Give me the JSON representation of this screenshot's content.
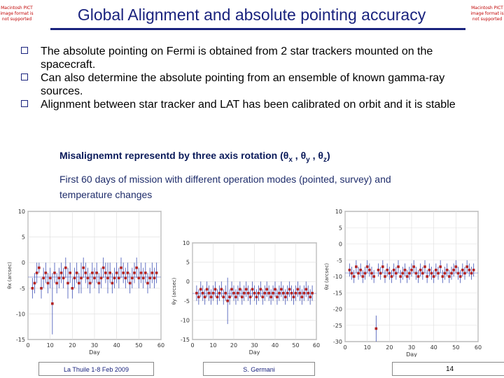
{
  "pict_placeholder": "Macintosh PICT image format is not supported",
  "title": "Global Alignment and absolute pointing accuracy",
  "bullets": [
    "The absolute pointing on Fermi is obtained from 2 star trackers mounted on the spacecraft.",
    "Can also determine the absolute pointing from an ensemble of known gamma-ray sources.",
    "Alignment between star tracker and LAT has been calibrated on orbit and it  is stable"
  ],
  "subhead": {
    "prefix": "Misalignemnt representd by three axis rotation (",
    "theta": "θ",
    "x": "x",
    "y": "y",
    "z": "z",
    "sep": " , ",
    "suffix": ")"
  },
  "caption": "First 60 days of mission with different operation modes (pointed, survey) and temperature changes",
  "colors": {
    "title": "#1a237e",
    "point": "#b22222",
    "line": "#3f51b5",
    "axis": "#555555"
  },
  "footer": {
    "left": "La Thuile 1-8 Feb 2009",
    "center": "S. Germani",
    "page": "14"
  },
  "chart_data": [
    {
      "type": "scatter",
      "xlabel": "Day",
      "ylabel": "θx (arcsec)",
      "xlim": [
        0,
        60
      ],
      "ylim": [
        -15,
        10
      ],
      "xticks": [
        "0",
        "10",
        "20",
        "30",
        "40",
        "50",
        "60"
      ],
      "yticks": [
        "10",
        "5",
        "0",
        "-5",
        "-10",
        "-15"
      ],
      "x": [
        2,
        3,
        4,
        5,
        6,
        7,
        8,
        9,
        10,
        11,
        12,
        13,
        14,
        15,
        16,
        17,
        18,
        19,
        20,
        21,
        22,
        23,
        24,
        25,
        26,
        27,
        28,
        29,
        30,
        31,
        32,
        33,
        34,
        35,
        36,
        37,
        38,
        39,
        40,
        41,
        42,
        43,
        44,
        45,
        46,
        47,
        48,
        49,
        50,
        51,
        52,
        53,
        54,
        55,
        56,
        57,
        58
      ],
      "y": [
        -5,
        -4,
        -2,
        -1,
        -5,
        -3,
        -2,
        -4,
        -3,
        -8,
        -2,
        -4,
        -3,
        -2,
        -3,
        -1,
        -4,
        -2,
        -5,
        -3,
        -2,
        -4,
        -3,
        -1,
        -2,
        -3,
        -4,
        -2,
        -3,
        -2,
        -4,
        -3,
        -1,
        -2,
        -3,
        -2,
        -4,
        -3,
        -2,
        -3,
        -1,
        -2,
        -3,
        -2,
        -4,
        -3,
        -2,
        -1,
        -3,
        -2,
        -3,
        -2,
        -4,
        -3,
        -2,
        -3,
        -2
      ],
      "errors": [
        2,
        2,
        2,
        1,
        2,
        2,
        2,
        2,
        2,
        6,
        2,
        2,
        2,
        2,
        2,
        2,
        3,
        2,
        2,
        2,
        2,
        2,
        3,
        2,
        2,
        2,
        2,
        2,
        2,
        2,
        2,
        2,
        2,
        2,
        3,
        2,
        2,
        2,
        2,
        2,
        2,
        2,
        2,
        2,
        2,
        2,
        2,
        2,
        2,
        2,
        2,
        2,
        2,
        2,
        2,
        2,
        2
      ]
    },
    {
      "type": "scatter",
      "xlabel": "Day",
      "ylabel": "θy (arcsec)",
      "xlim": [
        0,
        60
      ],
      "ylim": [
        -15,
        10
      ],
      "xticks": [
        "0",
        "10",
        "20",
        "30",
        "40",
        "50",
        "60"
      ],
      "yticks": [
        "10",
        "5",
        "0",
        "-5",
        "-10",
        "-15"
      ],
      "x": [
        2,
        3,
        4,
        5,
        6,
        7,
        8,
        9,
        10,
        11,
        12,
        13,
        14,
        15,
        16,
        17,
        18,
        19,
        20,
        21,
        22,
        23,
        24,
        25,
        26,
        27,
        28,
        29,
        30,
        31,
        32,
        33,
        34,
        35,
        36,
        37,
        38,
        39,
        40,
        41,
        42,
        43,
        44,
        45,
        46,
        47,
        48,
        49,
        50,
        51,
        52,
        53,
        54,
        55,
        56,
        57,
        58
      ],
      "y": [
        -3,
        -4,
        -2,
        -3,
        -4,
        -2,
        -3,
        -4,
        -3,
        -2,
        -4,
        -3,
        -2,
        -4,
        -3,
        -5,
        -4,
        -2,
        -3,
        -4,
        -3,
        -2,
        -4,
        -3,
        -2,
        -3,
        -4,
        -2,
        -3,
        -4,
        -3,
        -2,
        -4,
        -3,
        -2,
        -3,
        -4,
        -3,
        -2,
        -4,
        -3,
        -2,
        -3,
        -4,
        -3,
        -2,
        -3,
        -4,
        -3,
        -2,
        -3,
        -4,
        -3,
        -2,
        -3,
        -4,
        -3
      ],
      "errors": [
        2,
        2,
        2,
        2,
        2,
        2,
        2,
        2,
        2,
        2,
        2,
        2,
        2,
        2,
        2,
        6,
        2,
        2,
        2,
        2,
        2,
        2,
        2,
        2,
        2,
        2,
        2,
        2,
        2,
        2,
        2,
        2,
        2,
        2,
        2,
        2,
        2,
        2,
        2,
        2,
        2,
        2,
        2,
        2,
        2,
        2,
        2,
        2,
        2,
        2,
        2,
        2,
        2,
        2,
        2,
        2,
        2
      ]
    },
    {
      "type": "scatter",
      "xlabel": "Day",
      "ylabel": "θz (arcsec)",
      "xlim": [
        0,
        60
      ],
      "ylim": [
        -30,
        10
      ],
      "xticks": [
        "0",
        "10",
        "20",
        "30",
        "40",
        "50",
        "60"
      ],
      "yticks": [
        "10",
        "5",
        "0",
        "-5",
        "-10",
        "-15",
        "-20",
        "-25",
        "-30"
      ],
      "x": [
        2,
        3,
        4,
        5,
        6,
        7,
        8,
        9,
        10,
        11,
        12,
        13,
        14,
        15,
        16,
        17,
        18,
        19,
        20,
        21,
        22,
        23,
        24,
        25,
        26,
        27,
        28,
        29,
        30,
        31,
        32,
        33,
        34,
        35,
        36,
        37,
        38,
        39,
        40,
        41,
        42,
        43,
        44,
        45,
        46,
        47,
        48,
        49,
        50,
        51,
        52,
        53,
        54,
        55,
        56,
        57,
        58
      ],
      "y": [
        -8,
        -9,
        -10,
        -7,
        -9,
        -8,
        -10,
        -9,
        -7,
        -8,
        -9,
        -10,
        -26,
        -8,
        -9,
        -7,
        -10,
        -8,
        -9,
        -10,
        -8,
        -9,
        -7,
        -10,
        -9,
        -8,
        -10,
        -9,
        -8,
        -7,
        -9,
        -10,
        -8,
        -9,
        -7,
        -10,
        -8,
        -9,
        -10,
        -8,
        -9,
        -7,
        -10,
        -9,
        -8,
        -10,
        -9,
        -8,
        -7,
        -9,
        -10,
        -8,
        -9,
        -7,
        -8,
        -9,
        -8
      ],
      "errors": [
        2,
        2,
        2,
        2,
        2,
        2,
        2,
        2,
        2,
        2,
        2,
        2,
        4,
        2,
        2,
        2,
        2,
        2,
        2,
        2,
        2,
        2,
        2,
        2,
        2,
        2,
        2,
        2,
        2,
        2,
        2,
        2,
        2,
        2,
        2,
        2,
        2,
        2,
        2,
        2,
        2,
        2,
        2,
        2,
        2,
        2,
        2,
        2,
        2,
        2,
        2,
        2,
        2,
        2,
        2,
        2,
        2
      ]
    }
  ]
}
